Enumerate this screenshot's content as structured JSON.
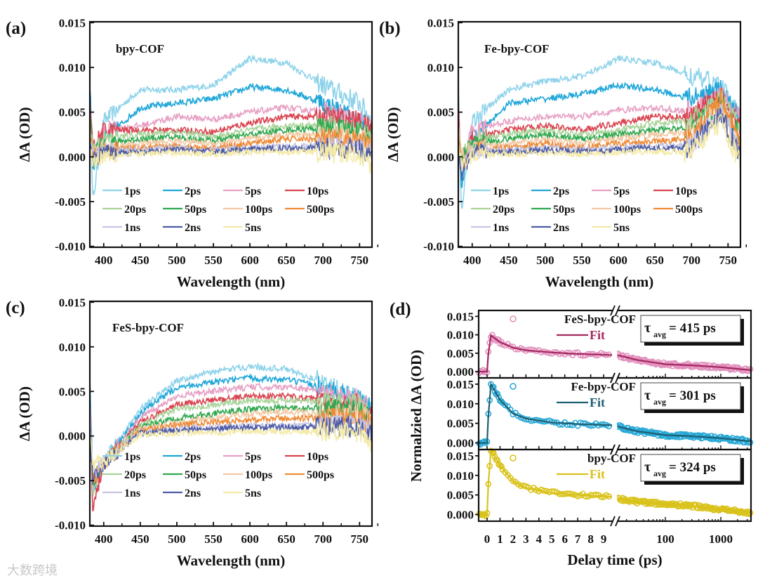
{
  "watermark": "大数跨境",
  "chart_data": [
    {
      "type": "line",
      "panel_label": "(a)",
      "title": "bpy-COF",
      "xlabel": "Wavelength (nm)",
      "ylabel": "ΔA (OD)",
      "xlim": [
        381,
        767
      ],
      "ylim": [
        -0.0101,
        0.0151
      ],
      "xticks": [
        400,
        450,
        500,
        550,
        600,
        650,
        700,
        750
      ],
      "yticks": [
        -0.01,
        -0.005,
        0.0,
        0.005,
        0.01,
        0.015
      ],
      "ytick_labels": [
        "-0.010",
        "-0.005",
        "0.000",
        "0.005",
        "0.010",
        "0.015"
      ],
      "x": [
        378,
        385,
        400,
        450,
        500,
        550,
        600,
        650,
        700,
        750,
        768
      ],
      "series": [
        {
          "name": "1ps",
          "color": "#8fd3ea",
          "values": [
            0.015,
            -0.005,
            0.004,
            0.0075,
            0.0075,
            0.008,
            0.011,
            0.0105,
            0.008,
            0.006,
            0.004
          ]
        },
        {
          "name": "2ps",
          "color": "#1ea6d8",
          "values": [
            0.015,
            -0.001,
            0.002,
            0.0055,
            0.006,
            0.0065,
            0.0078,
            0.0075,
            0.006,
            0.004,
            0.003
          ]
        },
        {
          "name": "5ps",
          "color": "#e7a0c4",
          "values": [
            0.012,
            0.0,
            0.003,
            0.0035,
            0.0045,
            0.0042,
            0.005,
            0.0055,
            0.005,
            0.004,
            0.003
          ]
        },
        {
          "name": "10ps",
          "color": "#d9434f",
          "values": [
            0.01,
            0.001,
            0.003,
            0.003,
            0.003,
            0.0028,
            0.0038,
            0.0045,
            0.0045,
            0.004,
            0.003
          ]
        },
        {
          "name": "20ps",
          "color": "#a9d49a",
          "values": [
            0.008,
            0.001,
            0.002,
            0.0025,
            0.0028,
            0.0022,
            0.003,
            0.0035,
            0.0035,
            0.003,
            0.002
          ]
        },
        {
          "name": "50ps",
          "color": "#2fa84f",
          "values": [
            0.007,
            0.0005,
            0.0015,
            0.002,
            0.0022,
            0.0018,
            0.0025,
            0.003,
            0.0032,
            0.003,
            0.002
          ]
        },
        {
          "name": "100ps",
          "color": "#f2c9a4",
          "values": [
            0.006,
            0.0005,
            0.001,
            0.0015,
            0.0018,
            0.0015,
            0.002,
            0.0025,
            0.0025,
            0.002,
            0.0015
          ]
        },
        {
          "name": "500ps",
          "color": "#ef8a35",
          "values": [
            0.005,
            0.0,
            0.0008,
            0.001,
            0.0012,
            0.001,
            0.0015,
            0.002,
            0.002,
            0.0018,
            0.001
          ]
        },
        {
          "name": "1ns",
          "color": "#c5c5e0",
          "values": [
            0.004,
            0.0,
            0.0008,
            0.0008,
            0.001,
            0.0008,
            0.001,
            0.0012,
            0.0012,
            0.001,
            0.0005
          ]
        },
        {
          "name": "2ns",
          "color": "#4d5ba5",
          "values": [
            0.003,
            -0.0005,
            0.0005,
            0.0005,
            0.0008,
            0.0006,
            0.0008,
            0.001,
            0.001,
            0.0008,
            0.0
          ]
        },
        {
          "name": "5ns",
          "color": "#f4eaa8",
          "values": [
            0.003,
            -0.0005,
            0.0002,
            0.0003,
            0.0005,
            0.0003,
            0.0005,
            0.0006,
            0.0005,
            0.0003,
            -0.001
          ]
        }
      ]
    },
    {
      "type": "line",
      "panel_label": "(b)",
      "title": "Fe-bpy-COF",
      "xlabel": "Wavelength (nm)",
      "ylabel": "ΔA (OD)",
      "xlim": [
        381,
        767
      ],
      "ylim": [
        -0.0101,
        0.0151
      ],
      "xticks": [
        400,
        450,
        500,
        550,
        600,
        650,
        700,
        750
      ],
      "yticks": [
        -0.01,
        -0.005,
        0.0,
        0.005,
        0.01,
        0.015
      ],
      "ytick_labels": [
        "-0.010",
        "-0.005",
        "0.000",
        "0.005",
        "0.010",
        "0.015"
      ],
      "x": [
        378,
        385,
        400,
        450,
        500,
        550,
        600,
        650,
        700,
        740,
        768
      ],
      "series": [
        {
          "name": "1ps",
          "color": "#8fd3ea",
          "values": [
            0.015,
            -0.006,
            0.004,
            0.0075,
            0.0085,
            0.009,
            0.011,
            0.0105,
            0.009,
            0.008,
            0.004
          ]
        },
        {
          "name": "2ps",
          "color": "#1ea6d8",
          "values": [
            0.015,
            -0.003,
            0.002,
            0.006,
            0.0065,
            0.007,
            0.008,
            0.0075,
            0.0065,
            0.0075,
            0.004
          ]
        },
        {
          "name": "5ps",
          "color": "#e7a0c4",
          "values": [
            0.012,
            -0.001,
            0.003,
            0.004,
            0.0045,
            0.0045,
            0.0052,
            0.0055,
            0.005,
            0.007,
            0.004
          ]
        },
        {
          "name": "10ps",
          "color": "#d9434f",
          "values": [
            0.01,
            -0.001,
            0.002,
            0.003,
            0.0035,
            0.003,
            0.0038,
            0.0045,
            0.0045,
            0.007,
            0.003
          ]
        },
        {
          "name": "20ps",
          "color": "#a9d49a",
          "values": [
            0.008,
            0.0,
            0.002,
            0.0025,
            0.003,
            0.0025,
            0.003,
            0.0038,
            0.004,
            0.0065,
            0.003
          ]
        },
        {
          "name": "50ps",
          "color": "#2fa84f",
          "values": [
            0.007,
            0.0,
            0.0015,
            0.002,
            0.0025,
            0.002,
            0.0025,
            0.003,
            0.0032,
            0.006,
            0.002
          ]
        },
        {
          "name": "100ps",
          "color": "#f2c9a4",
          "values": [
            0.006,
            0.0,
            0.001,
            0.0015,
            0.002,
            0.0015,
            0.002,
            0.0025,
            0.0028,
            0.006,
            0.002
          ]
        },
        {
          "name": "500ps",
          "color": "#ef8a35",
          "values": [
            0.005,
            -0.001,
            0.0008,
            0.001,
            0.0015,
            0.001,
            0.0015,
            0.0018,
            0.002,
            0.0065,
            0.001
          ]
        },
        {
          "name": "1ns",
          "color": "#c5c5e0",
          "values": [
            0.004,
            -0.001,
            0.0006,
            0.0008,
            0.001,
            0.0008,
            0.001,
            0.0012,
            0.0012,
            0.005,
            0.0005
          ]
        },
        {
          "name": "2ns",
          "color": "#4d5ba5",
          "values": [
            0.003,
            -0.002,
            0.0005,
            0.0005,
            0.0008,
            0.0006,
            0.0008,
            0.001,
            0.001,
            0.005,
            0.0
          ]
        },
        {
          "name": "5ns",
          "color": "#f4eaa8",
          "values": [
            0.003,
            -0.001,
            0.0002,
            0.0003,
            0.0005,
            0.0003,
            0.0005,
            0.0006,
            0.0005,
            0.004,
            -0.001
          ]
        }
      ]
    },
    {
      "type": "line",
      "panel_label": "(c)",
      "title": "FeS-bpy-COF",
      "xlabel": "Wavelength (nm)",
      "ylabel": "ΔA (OD)",
      "xlim": [
        381,
        767
      ],
      "ylim": [
        -0.0101,
        0.0151
      ],
      "xticks": [
        400,
        450,
        500,
        550,
        600,
        650,
        700,
        750
      ],
      "yticks": [
        -0.01,
        -0.005,
        0.0,
        0.005,
        0.01,
        0.015
      ],
      "ytick_labels": [
        "-0.010",
        "-0.005",
        "0.000",
        "0.005",
        "0.010",
        "0.015"
      ],
      "x": [
        378,
        385,
        400,
        450,
        500,
        550,
        600,
        650,
        700,
        750,
        768
      ],
      "series": [
        {
          "name": "1ps",
          "color": "#8fd3ea",
          "values": [
            0.015,
            -0.005,
            -0.003,
            0.003,
            0.0062,
            0.0072,
            0.0078,
            0.0075,
            0.006,
            0.004,
            0.003
          ]
        },
        {
          "name": "2ps",
          "color": "#1ea6d8",
          "values": [
            0.015,
            -0.006,
            -0.003,
            0.0025,
            0.0055,
            0.006,
            0.0065,
            0.0063,
            0.0055,
            0.004,
            0.003
          ]
        },
        {
          "name": "5ps",
          "color": "#e7a0c4",
          "values": [
            0.012,
            -0.006,
            -0.003,
            0.002,
            0.0045,
            0.005,
            0.0055,
            0.0055,
            0.005,
            0.004,
            0.003
          ]
        },
        {
          "name": "10ps",
          "color": "#d9434f",
          "values": [
            0.01,
            -0.008,
            -0.003,
            0.0015,
            0.0035,
            0.004,
            0.0045,
            0.0045,
            0.004,
            0.0035,
            0.002
          ]
        },
        {
          "name": "20ps",
          "color": "#a9d49a",
          "values": [
            0.008,
            -0.006,
            -0.003,
            0.0012,
            0.003,
            0.0035,
            0.004,
            0.004,
            0.0038,
            0.0035,
            0.002
          ]
        },
        {
          "name": "50ps",
          "color": "#2fa84f",
          "values": [
            0.007,
            -0.005,
            -0.003,
            0.001,
            0.002,
            0.0025,
            0.003,
            0.0032,
            0.003,
            0.003,
            0.002
          ]
        },
        {
          "name": "100ps",
          "color": "#f2c9a4",
          "values": [
            0.006,
            -0.005,
            -0.003,
            0.0008,
            0.0015,
            0.002,
            0.0025,
            0.0028,
            0.0025,
            0.0025,
            0.0015
          ]
        },
        {
          "name": "500ps",
          "color": "#ef8a35",
          "values": [
            0.005,
            -0.005,
            -0.003,
            0.0006,
            0.0012,
            0.0015,
            0.0018,
            0.002,
            0.002,
            0.002,
            0.001
          ]
        },
        {
          "name": "1ns",
          "color": "#c5c5e0",
          "values": [
            0.004,
            -0.004,
            -0.003,
            0.0004,
            0.0008,
            0.001,
            0.0012,
            0.0012,
            0.0012,
            0.0012,
            0.0005
          ]
        },
        {
          "name": "2ns",
          "color": "#4d5ba5",
          "values": [
            0.003,
            -0.005,
            -0.003,
            0.0003,
            0.0006,
            0.0008,
            0.001,
            0.001,
            0.001,
            0.001,
            0.0
          ]
        },
        {
          "name": "5ns",
          "color": "#f4eaa8",
          "values": [
            0.003,
            -0.003,
            -0.003,
            0.0001,
            0.0003,
            0.0004,
            0.0005,
            0.0005,
            0.0005,
            0.0005,
            -0.001
          ]
        }
      ]
    },
    {
      "type": "scatter",
      "panel_label": "(d)",
      "xlabel": "Delay time (ps)",
      "ylabel": "Normalzied ΔA (OD)",
      "x_linear_range": [
        -0.65,
        9.7
      ],
      "x_log_range": [
        13.8,
        3500
      ],
      "xticks_linear": [
        0,
        1,
        2,
        3,
        4,
        5,
        6,
        7,
        8,
        9
      ],
      "xticks_log": [
        100,
        1000
      ],
      "ylim": [
        -0.0017,
        0.0166
      ],
      "yticks": [
        0.0,
        0.005,
        0.01,
        0.015
      ],
      "ytick_labels": [
        "0.000",
        "0.005",
        "0.010",
        "0.015"
      ],
      "fit_x": [
        -0.65,
        0,
        0.1,
        0.3,
        1,
        2,
        3,
        5,
        7,
        9.7,
        13.8,
        30,
        100,
        300,
        1000,
        3500
      ],
      "series": [
        {
          "name": "FeS-bpy-COF",
          "fit_label": "Fit",
          "color": "#e291be",
          "fit_color": "#a3285f",
          "tau_symbol": "τ",
          "tau_sub": "avg",
          "tau_value": "= 415 ps",
          "tau_ps": 415,
          "fit": [
            0,
            0,
            0.005,
            0.0098,
            0.008,
            0.0065,
            0.0058,
            0.0052,
            0.0048,
            0.0045,
            0.0045,
            0.0032,
            0.002,
            0.0017,
            0.0012,
            0.0004
          ]
        },
        {
          "name": "Fe-bpy-COF",
          "fit_label": "Fit",
          "color": "#26a8d6",
          "fit_color": "#1e5f73",
          "tau_symbol": "τ",
          "tau_sub": "avg",
          "tau_value": "= 301 ps",
          "tau_ps": 301,
          "fit": [
            0,
            0,
            0.007,
            0.015,
            0.011,
            0.0075,
            0.0062,
            0.0052,
            0.0048,
            0.0045,
            0.0042,
            0.003,
            0.002,
            0.0017,
            0.0012,
            0.0004
          ]
        },
        {
          "name": "bpy-COF",
          "fit_label": "Fit",
          "color": "#d9c21a",
          "fit_color": "#d9c21a",
          "tau_symbol": "τ",
          "tau_sub": "avg",
          "tau_value": "= 324 ps",
          "tau_ps": 324,
          "fit": [
            0,
            0,
            0.008,
            0.0165,
            0.0125,
            0.0085,
            0.0068,
            0.0055,
            0.005,
            0.0045,
            0.0042,
            0.0033,
            0.0027,
            0.0022,
            0.0012,
            0.0005
          ]
        }
      ]
    }
  ]
}
